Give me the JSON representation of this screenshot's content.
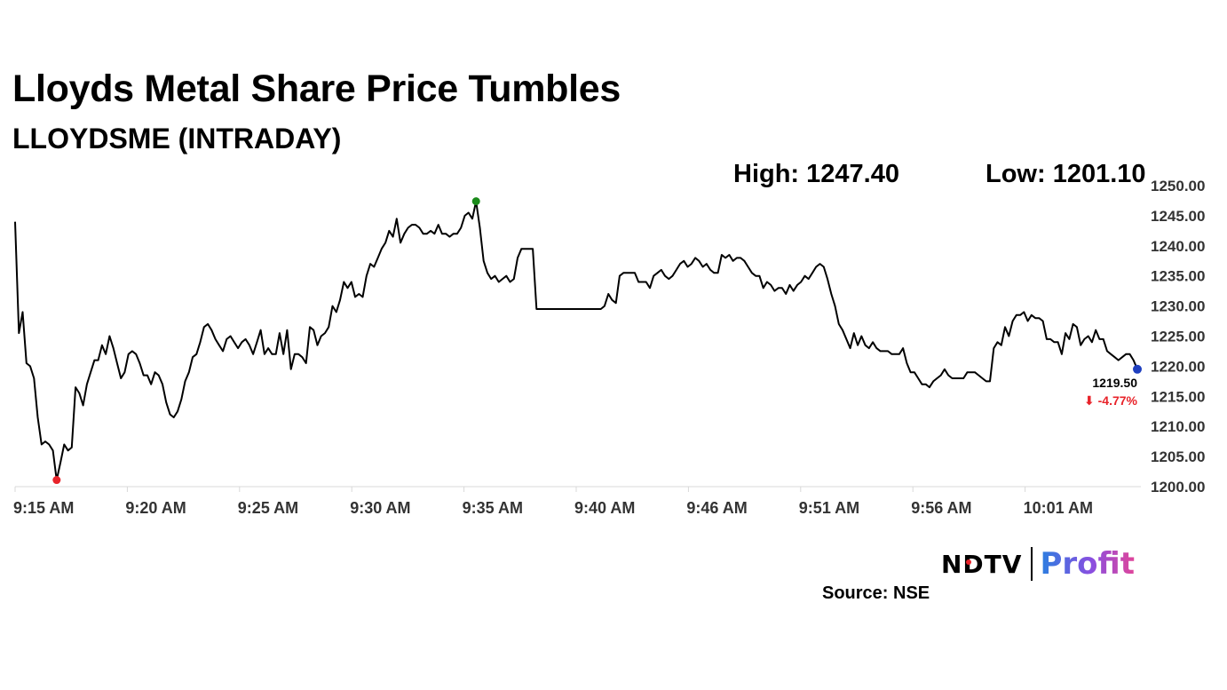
{
  "header": {
    "title": "Lloyds Metal Share Price Tumbles",
    "subtitle": "LLOYDSME (INTRADAY)",
    "high_label": "High: 1247.40",
    "low_label": "Low: 1201.10"
  },
  "footer": {
    "brand_ndtv": "NDTV",
    "brand_profit": "Profit",
    "source": "Source: NSE"
  },
  "colors": {
    "line": "#000000",
    "high_marker": "#1a8a1a",
    "low_marker": "#e8232a",
    "last_marker": "#1f3fbf",
    "change_negative": "#e8232a",
    "axis": "#d9d9d9"
  },
  "chart_data": {
    "type": "line",
    "title": "Lloyds Metal Share Price Tumbles",
    "subtitle": "LLOYDSME (INTRADAY)",
    "ylim": [
      1200,
      1250
    ],
    "y_ticks": [
      "1250.00",
      "1245.00",
      "1240.00",
      "1235.00",
      "1230.00",
      "1225.00",
      "1220.00",
      "1215.00",
      "1210.00",
      "1205.00",
      "1200.00"
    ],
    "x_ticks": [
      "9:15 AM",
      "9:20 AM",
      "9:25 AM",
      "9:30 AM",
      "9:35 AM",
      "9:40 AM",
      "9:46 AM",
      "9:51 AM",
      "9:56 AM",
      "10:01 AM"
    ],
    "high": 1247.4,
    "low": 1201.1,
    "last_price": "1219.50",
    "change": "-4.77%",
    "change_arrow": "⬇",
    "grid": false,
    "legend": "none",
    "series": [
      {
        "values": [
          1244.0,
          1225.5,
          1229.0,
          1220.5,
          1220.0,
          1218.0,
          1211.5,
          1207.0,
          1207.5,
          1207.0,
          1206.0,
          1201.1,
          1204.0,
          1207.0,
          1206.0,
          1206.5,
          1216.5,
          1215.5,
          1213.5,
          1217.0,
          1219.0,
          1221.0,
          1221.0,
          1223.5,
          1222.0,
          1225.0,
          1223.0,
          1220.5,
          1218.0,
          1219.0,
          1222.0,
          1222.5,
          1222.0,
          1220.5,
          1218.5,
          1218.5,
          1217.0,
          1219.0,
          1218.5,
          1217.0,
          1214.0,
          1212.0,
          1211.5,
          1212.5,
          1214.5,
          1217.5,
          1219.0,
          1221.5,
          1222.0,
          1224.0,
          1226.5,
          1227.0,
          1226.0,
          1224.5,
          1223.5,
          1222.5,
          1224.5,
          1225.0,
          1224.0,
          1223.0,
          1224.0,
          1224.5,
          1223.5,
          1222.0,
          1224.0,
          1226.0,
          1222.0,
          1223.0,
          1222.0,
          1222.0,
          1225.5,
          1222.0,
          1226.0,
          1219.5,
          1222.0,
          1222.0,
          1221.5,
          1220.5,
          1226.5,
          1226.0,
          1223.5,
          1225.0,
          1225.5,
          1226.5,
          1230.0,
          1229.0,
          1231.0,
          1234.0,
          1233.0,
          1234.0,
          1231.5,
          1232.0,
          1231.5,
          1235.0,
          1237.0,
          1236.5,
          1238.0,
          1239.5,
          1240.5,
          1242.5,
          1241.5,
          1244.5,
          1240.5,
          1242.0,
          1243.0,
          1243.5,
          1243.5,
          1243.0,
          1242.0,
          1242.0,
          1242.5,
          1242.0,
          1243.5,
          1242.0,
          1242.0,
          1241.5,
          1242.0,
          1242.0,
          1243.0,
          1245.0,
          1245.5,
          1244.5,
          1247.4,
          1243.0,
          1237.5,
          1235.5,
          1234.5,
          1235.0,
          1234.0,
          1234.5,
          1235.0,
          1234.0,
          1234.5,
          1238.0,
          1239.5,
          1239.5,
          1239.5,
          1239.5,
          1229.5,
          1229.5,
          1229.5,
          1229.5,
          1229.5,
          1229.5,
          1229.5,
          1229.5,
          1229.5,
          1229.5,
          1229.5,
          1229.5,
          1229.5,
          1229.5,
          1229.5,
          1229.5,
          1229.5,
          1229.5,
          1230.0,
          1232.0,
          1231.0,
          1230.5,
          1235.0,
          1235.5,
          1235.5,
          1235.5,
          1235.5,
          1234.0,
          1234.0,
          1234.0,
          1233.0,
          1235.0,
          1235.5,
          1236.0,
          1235.0,
          1234.5,
          1235.0,
          1236.0,
          1237.0,
          1237.5,
          1236.5,
          1237.0,
          1238.0,
          1237.5,
          1236.5,
          1237.0,
          1236.0,
          1235.5,
          1235.5,
          1238.5,
          1238.0,
          1238.5,
          1237.5,
          1238.0,
          1238.0,
          1237.5,
          1236.5,
          1235.5,
          1235.0,
          1235.0,
          1233.0,
          1234.0,
          1233.5,
          1232.5,
          1233.0,
          1233.0,
          1232.0,
          1233.5,
          1232.5,
          1233.5,
          1234.0,
          1235.0,
          1234.5,
          1235.5,
          1236.5,
          1237.0,
          1236.5,
          1234.5,
          1232.0,
          1230.0,
          1227.0,
          1226.0,
          1224.5,
          1223.0,
          1225.5,
          1223.5,
          1225.0,
          1223.5,
          1223.0,
          1224.0,
          1223.0,
          1222.5,
          1222.5,
          1222.5,
          1222.0,
          1222.0,
          1222.0,
          1223.0,
          1220.5,
          1219.0,
          1219.0,
          1218.0,
          1217.0,
          1217.0,
          1216.5,
          1217.5,
          1218.0,
          1218.5,
          1219.5,
          1218.5,
          1218.0,
          1218.0,
          1218.0,
          1218.0,
          1219.0,
          1219.0,
          1219.0,
          1218.5,
          1218.0,
          1217.5,
          1217.5,
          1223.0,
          1224.0,
          1223.5,
          1226.5,
          1225.0,
          1227.5,
          1228.5,
          1228.5,
          1229.0,
          1227.5,
          1228.5,
          1228.0,
          1228.0,
          1227.5,
          1224.5,
          1224.5,
          1224.0,
          1224.0,
          1222.0,
          1225.5,
          1224.5,
          1227.0,
          1226.5,
          1223.5,
          1224.5,
          1225.0,
          1224.0,
          1226.0,
          1224.5,
          1224.5,
          1222.5,
          1222.0,
          1221.5,
          1221.0,
          1221.5,
          1222.0,
          1222.0,
          1221.0,
          1219.5
        ]
      }
    ]
  }
}
